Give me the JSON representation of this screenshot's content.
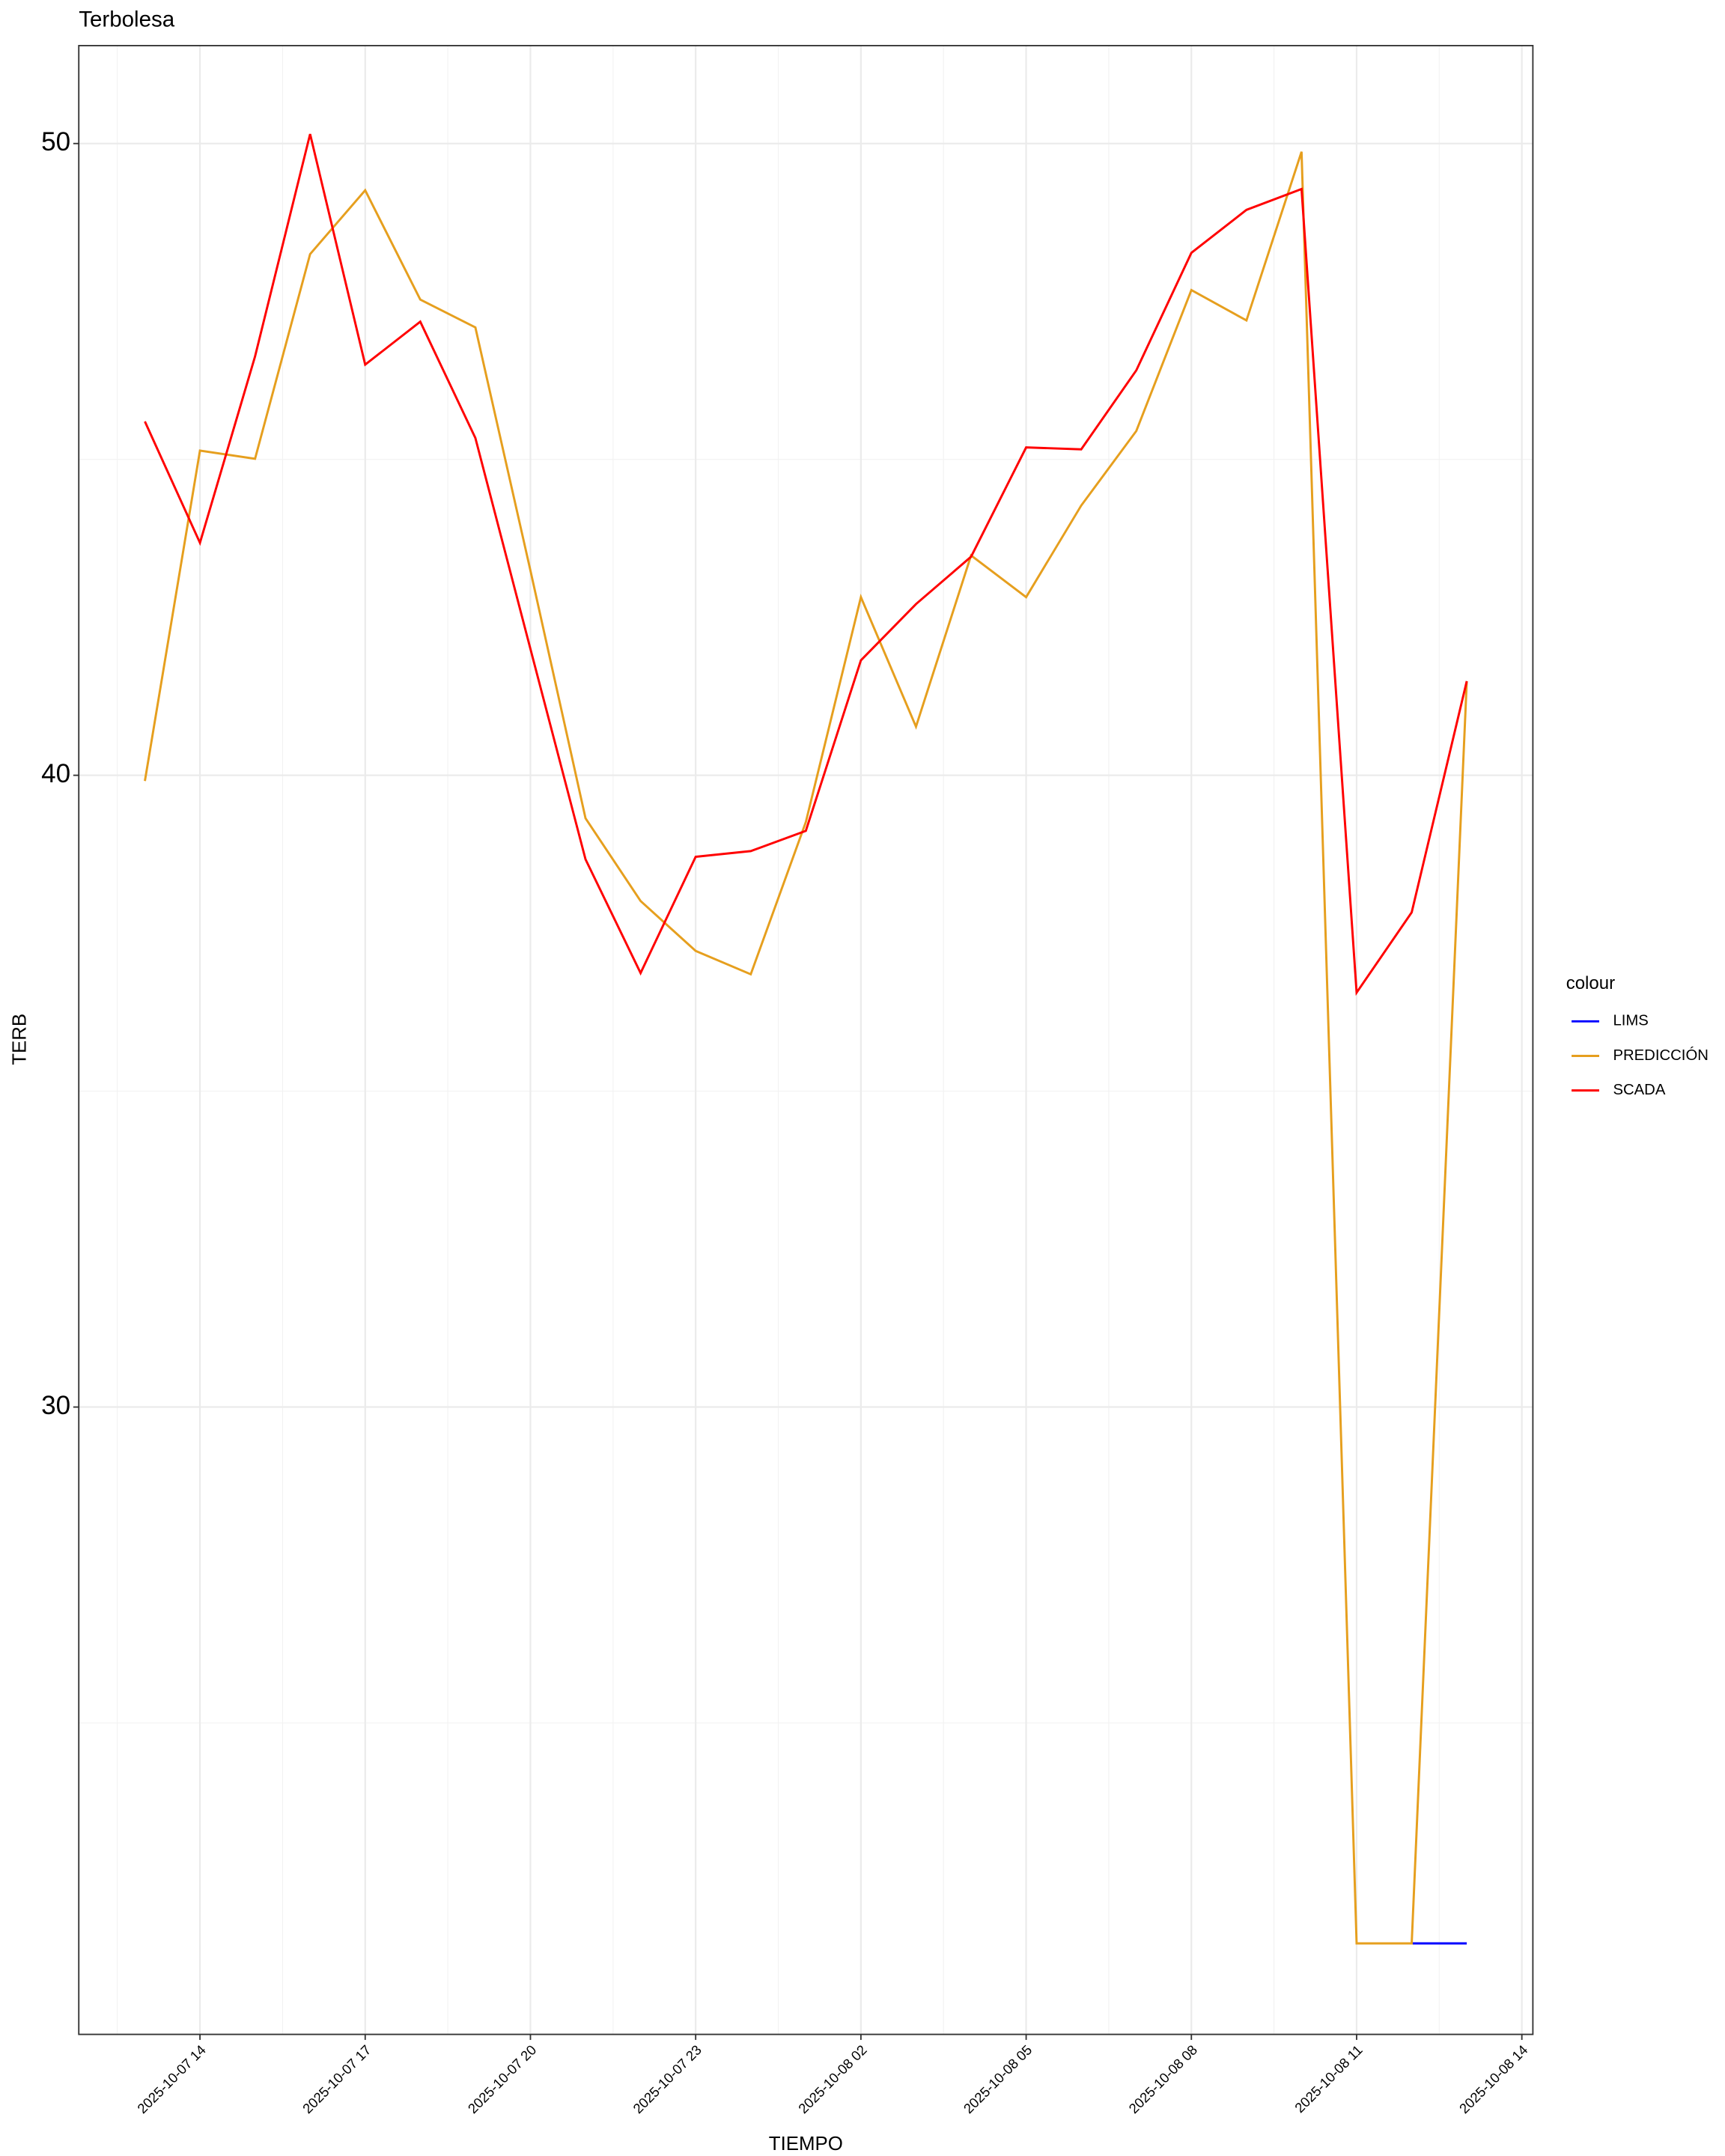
{
  "chart_data": {
    "type": "line",
    "title": "Terbolesa",
    "x_label": "TIEMPO",
    "y_label": "TERB",
    "x": [
      "2025-10-07 13",
      "2025-10-07 14",
      "2025-10-07 15",
      "2025-10-07 16",
      "2025-10-07 17",
      "2025-10-07 18",
      "2025-10-07 19",
      "2025-10-07 20",
      "2025-10-07 21",
      "2025-10-07 22",
      "2025-10-07 23",
      "2025-10-08 00",
      "2025-10-08 01",
      "2025-10-08 02",
      "2025-10-08 03",
      "2025-10-08 04",
      "2025-10-08 05",
      "2025-10-08 06",
      "2025-10-08 07",
      "2025-10-08 08",
      "2025-10-08 09",
      "2025-10-08 10",
      "2025-10-08 11",
      "2025-10-08 12",
      "2025-10-08 13"
    ],
    "series": [
      {
        "name": "LIMS",
        "color": "#0000ff",
        "values": [
          null,
          null,
          null,
          null,
          null,
          null,
          null,
          null,
          null,
          null,
          null,
          null,
          null,
          null,
          null,
          null,
          null,
          null,
          null,
          null,
          null,
          null,
          null,
          21.51,
          21.51
        ]
      },
      {
        "name": "PREDICCIÓN",
        "color": "#e69f1e",
        "values": [
          39.91,
          45.14,
          45.01,
          48.25,
          49.26,
          47.53,
          47.09,
          43.24,
          39.32,
          38.01,
          37.22,
          36.85,
          39.26,
          42.82,
          40.77,
          43.48,
          42.82,
          44.27,
          45.45,
          47.68,
          47.2,
          49.87,
          21.51,
          21.51,
          41.49
        ]
      },
      {
        "name": "SCADA",
        "color": "#ff0000",
        "values": [
          45.6,
          43.68,
          46.63,
          50.15,
          46.5,
          47.18,
          45.34,
          42.0,
          38.67,
          36.87,
          38.71,
          38.8,
          39.12,
          41.82,
          42.71,
          43.46,
          45.19,
          45.16,
          46.41,
          48.27,
          48.95,
          49.28,
          36.56,
          37.83,
          41.49
        ]
      }
    ],
    "legend_title": "colour",
    "legend_position": "right",
    "xlim": [
      "2025-10-07 11:48",
      "2025-10-08 14:12"
    ],
    "xticks": [
      "2025-10-07 14",
      "2025-10-07 17",
      "2025-10-07 20",
      "2025-10-07 23",
      "2025-10-08 02",
      "2025-10-08 05",
      "2025-10-08 08",
      "2025-10-08 11",
      "2025-10-08 14"
    ],
    "ylim": [
      20.07,
      51.55
    ],
    "yticks": [
      30,
      40,
      50
    ],
    "grid": true
  }
}
